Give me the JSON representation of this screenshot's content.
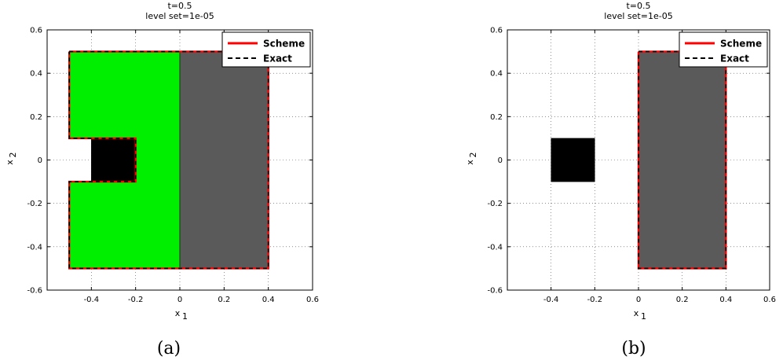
{
  "chart_data": [
    {
      "type": "region",
      "title_lines": [
        "t=0.5",
        "level set=1e-05"
      ],
      "xlabel": "x",
      "xlabel_sub": "1",
      "ylabel": "x",
      "ylabel_sub": "2",
      "xlim": [
        -0.6,
        0.6
      ],
      "ylim": [
        -0.6,
        0.6
      ],
      "xticks": [
        -0.4,
        -0.2,
        0,
        0.2,
        0.4,
        0.6
      ],
      "yticks": [
        -0.6,
        -0.4,
        -0.2,
        0,
        0.2,
        0.4,
        0.6
      ],
      "grid": true,
      "legend_position": "top-right",
      "legend": [
        {
          "label": "Scheme",
          "color": "#ff0000",
          "style": "solid"
        },
        {
          "label": "Exact",
          "color": "#000000",
          "style": "dashed"
        }
      ],
      "regions": [
        {
          "name": "green-region",
          "color": "#00ee00",
          "points": [
            [
              -0.5,
              0.5
            ],
            [
              0,
              0.5
            ],
            [
              0,
              -0.5
            ],
            [
              -0.5,
              -0.5
            ],
            [
              -0.5,
              -0.1
            ],
            [
              -0.2,
              -0.1
            ],
            [
              -0.2,
              0.1
            ],
            [
              -0.5,
              0.1
            ]
          ]
        },
        {
          "name": "gray-region",
          "color": "#5a5a5a",
          "points": [
            [
              0,
              0.5
            ],
            [
              0.4,
              0.5
            ],
            [
              0.4,
              -0.5
            ],
            [
              0,
              -0.5
            ]
          ]
        },
        {
          "name": "black-square",
          "color": "#000000",
          "points": [
            [
              -0.4,
              0.1
            ],
            [
              -0.2,
              0.1
            ],
            [
              -0.2,
              -0.1
            ],
            [
              -0.4,
              -0.1
            ]
          ]
        }
      ],
      "curves": [
        {
          "name": "boundary",
          "points": [
            [
              -0.5,
              0.5
            ],
            [
              0.4,
              0.5
            ],
            [
              0.4,
              -0.5
            ],
            [
              -0.5,
              -0.5
            ],
            [
              -0.5,
              -0.1
            ],
            [
              -0.2,
              -0.1
            ],
            [
              -0.2,
              0.1
            ],
            [
              -0.5,
              0.1
            ],
            [
              -0.5,
              0.5
            ]
          ]
        }
      ],
      "caption": "(a)"
    },
    {
      "type": "region",
      "title_lines": [
        "t=0.5",
        "level set=1e-05"
      ],
      "xlabel": "x",
      "xlabel_sub": "1",
      "ylabel": "x",
      "ylabel_sub": "2",
      "xlim": [
        -0.6,
        0.6
      ],
      "ylim": [
        -0.6,
        0.6
      ],
      "xticks": [
        -0.4,
        -0.2,
        0,
        0.2,
        0.4,
        0.6
      ],
      "yticks": [
        -0.6,
        -0.4,
        -0.2,
        0,
        0.2,
        0.4,
        0.6
      ],
      "grid": true,
      "legend_position": "top-right",
      "legend": [
        {
          "label": "Scheme",
          "color": "#ff0000",
          "style": "solid"
        },
        {
          "label": "Exact",
          "color": "#000000",
          "style": "dashed"
        }
      ],
      "regions": [
        {
          "name": "gray-region",
          "color": "#5a5a5a",
          "points": [
            [
              0,
              0.5
            ],
            [
              0.4,
              0.5
            ],
            [
              0.4,
              -0.5
            ],
            [
              0,
              -0.5
            ]
          ]
        },
        {
          "name": "black-square",
          "color": "#000000",
          "points": [
            [
              -0.4,
              0.1
            ],
            [
              -0.2,
              0.1
            ],
            [
              -0.2,
              -0.1
            ],
            [
              -0.4,
              -0.1
            ]
          ]
        }
      ],
      "curves": [
        {
          "name": "boundary",
          "points": [
            [
              0,
              0.5
            ],
            [
              0.4,
              0.5
            ],
            [
              0.4,
              -0.5
            ],
            [
              0,
              -0.5
            ],
            [
              0,
              0.5
            ]
          ]
        }
      ],
      "caption": "(b)"
    }
  ]
}
